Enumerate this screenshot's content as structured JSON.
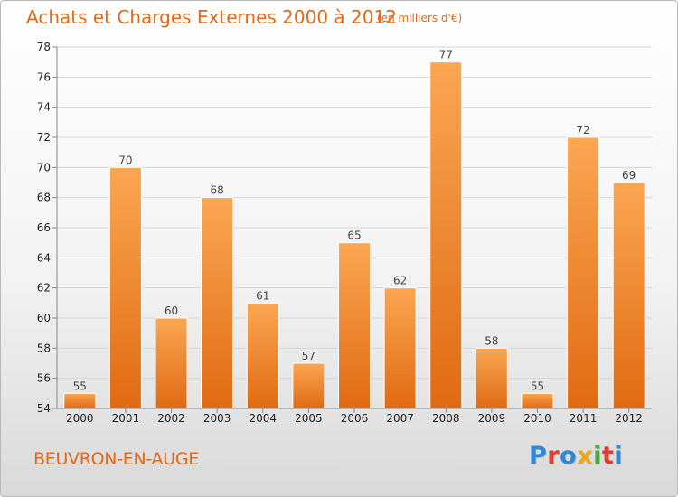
{
  "header": {
    "title": "Achats et Charges Externes 2000 à 2012",
    "subtitle": "(en milliers d'€)"
  },
  "footer": {
    "location": "BEUVRON-EN-AUGE",
    "logo_letters": [
      "P",
      "r",
      "o",
      "x",
      "i",
      "t",
      "i"
    ],
    "logo_colors": [
      "#2e88d6",
      "#e53b2c",
      "#2e88d6",
      "#f0a619",
      "#4cae3a",
      "#e53b2c",
      "#2e88d6"
    ]
  },
  "colors": {
    "bar_light": "#fba652",
    "bar_dark": "#e06a12",
    "accent": "#e06a1a",
    "grid": "#d6d6d6"
  },
  "chart_data": {
    "type": "bar",
    "categories": [
      "2000",
      "2001",
      "2002",
      "2003",
      "2004",
      "2005",
      "2006",
      "2007",
      "2008",
      "2009",
      "2010",
      "2011",
      "2012"
    ],
    "values": [
      55,
      70,
      60,
      68,
      61,
      57,
      65,
      62,
      77,
      58,
      55,
      72,
      69
    ],
    "data_labels": [
      "55",
      "70",
      "60",
      "68",
      "61",
      "57",
      "65",
      "62",
      "77",
      "58",
      "55",
      "72",
      "69"
    ],
    "title": "Achats et Charges Externes 2000 à 2012",
    "subtitle": "(en milliers d'€)",
    "ylim": [
      54,
      78
    ],
    "yticks": [
      54,
      56,
      58,
      60,
      62,
      64,
      66,
      68,
      70,
      72,
      74,
      76,
      78
    ],
    "grid": true
  }
}
